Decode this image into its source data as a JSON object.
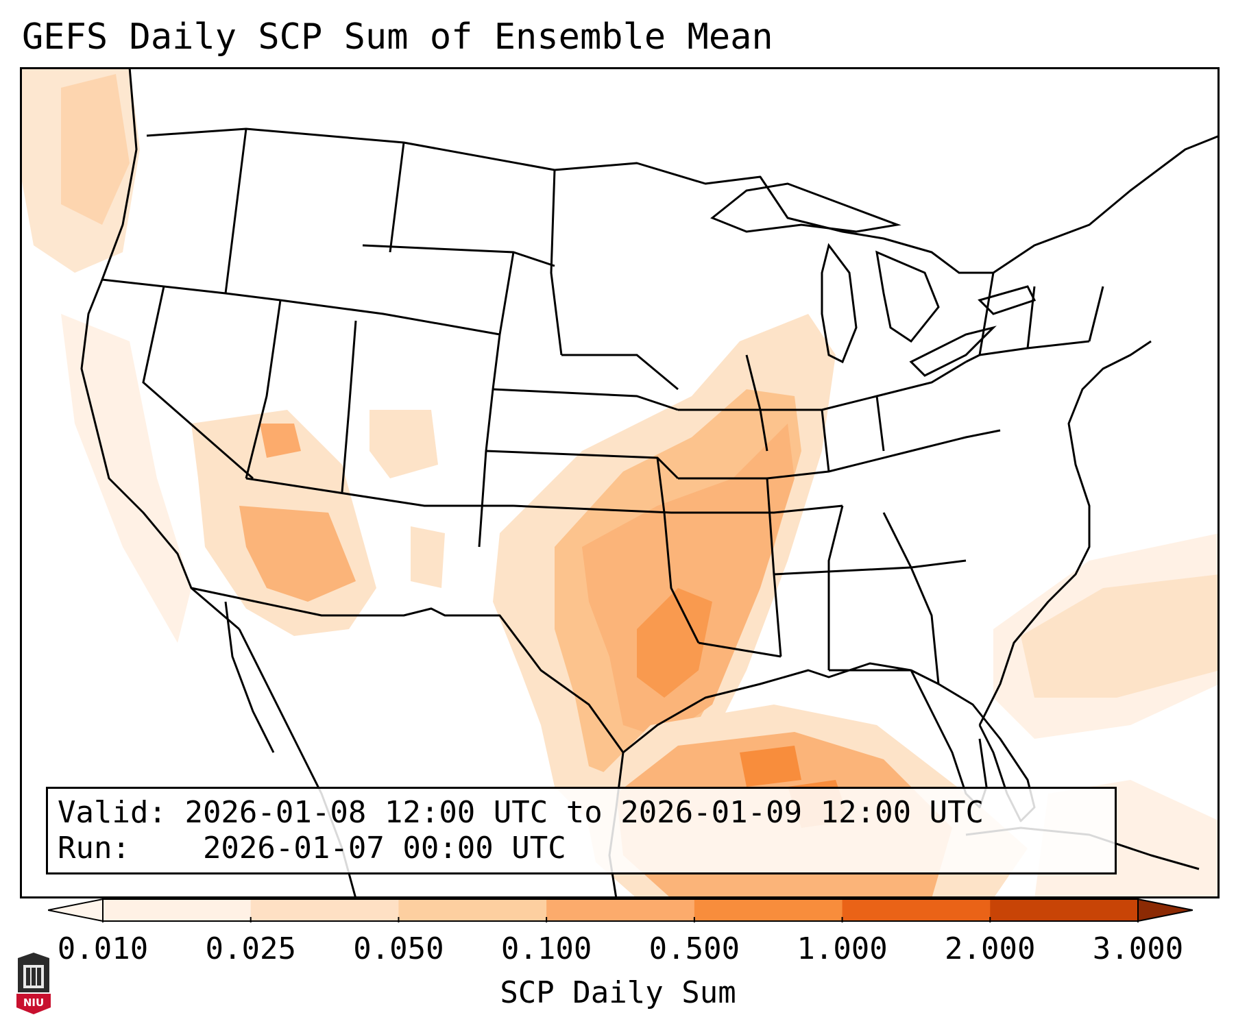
{
  "title": "GEFS Daily SCP Sum of Ensemble Mean",
  "info": {
    "valid_label": "Valid:",
    "valid_text": "2026-01-08 12:00 UTC to 2026-01-09 12:00 UTC",
    "run_label": "Run:",
    "run_text": "2026-01-07 00:00 UTC"
  },
  "colorbar": {
    "label": "SCP Daily Sum",
    "ticks": [
      "0.010",
      "0.025",
      "0.050",
      "0.100",
      "0.500",
      "1.000",
      "2.000",
      "3.000"
    ],
    "colors": [
      "#fff1e5",
      "#fee0c4",
      "#fdcfa0",
      "#fcab6c",
      "#f88d3c",
      "#ea6317",
      "#c84406",
      "#8c2a04"
    ],
    "extend": "both"
  },
  "logo": {
    "text": "NIU"
  },
  "map": {
    "projection": "Lambert Conformal, CONUS",
    "shading_color_scale": "oranges",
    "max_region": "Gulf of Mexico / East Texas / Arkansas",
    "secondary_region": "Atlantic off the Carolinas"
  }
}
